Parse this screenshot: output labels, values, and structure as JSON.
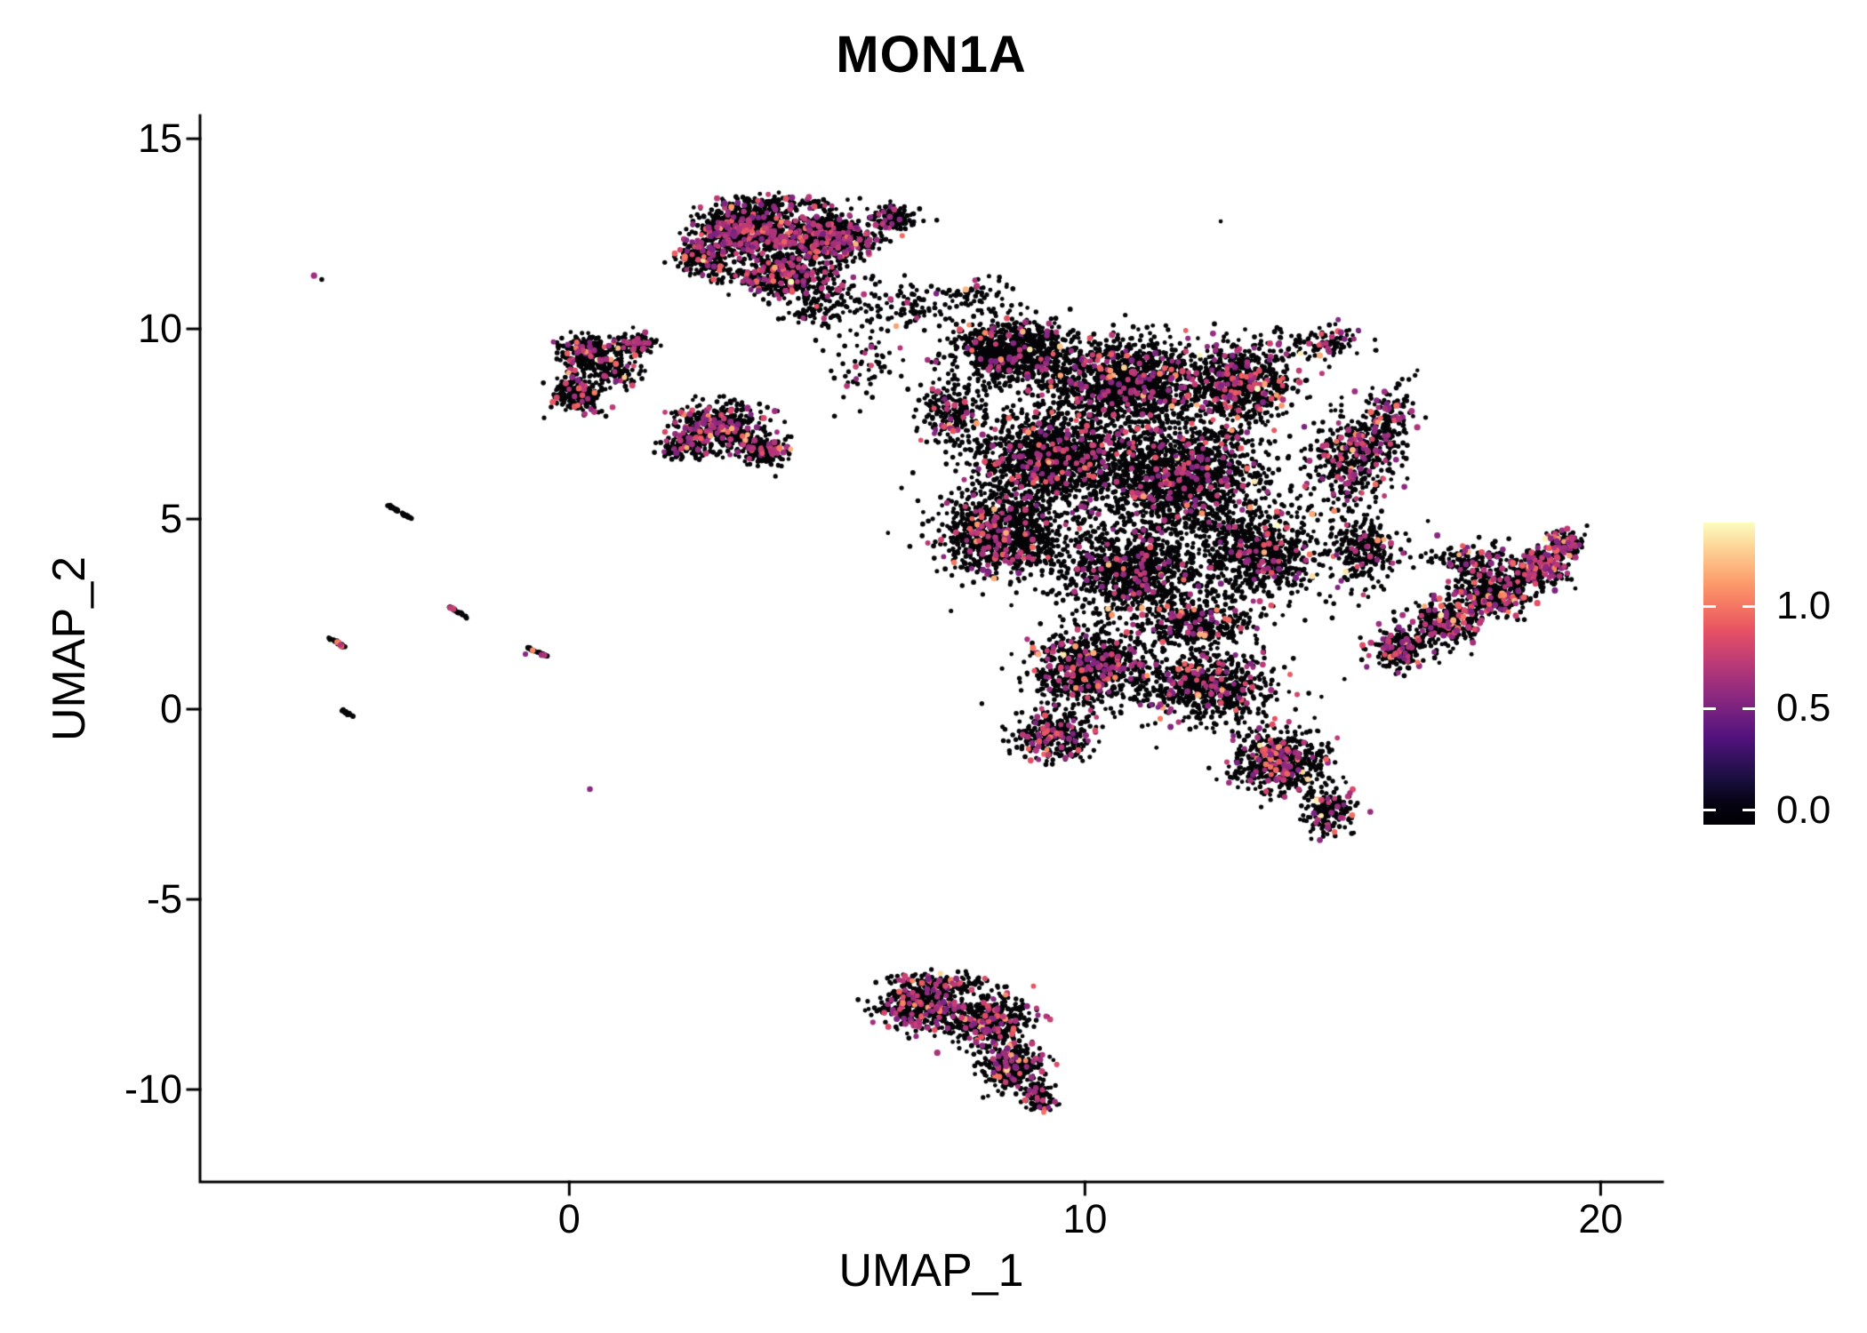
{
  "chart_data": {
    "type": "scatter",
    "title": "MON1A",
    "xlabel": "UMAP_1",
    "ylabel": "UMAP_2",
    "xlim": [
      -7.16,
      21.2
    ],
    "ylim": [
      -12.43,
      15.61
    ],
    "grid": false,
    "background": "#ffffff",
    "axis_color": "#000000",
    "x_ticks": [
      {
        "label": "0",
        "value": 0
      },
      {
        "label": "10",
        "value": 10
      },
      {
        "label": "20",
        "value": 20
      }
    ],
    "y_ticks": [
      {
        "label": "15",
        "value": 15
      },
      {
        "label": "10",
        "value": 10
      },
      {
        "label": "5",
        "value": 5
      },
      {
        "label": "0",
        "value": 0
      },
      {
        "label": "-5",
        "value": -5
      },
      {
        "label": "-10",
        "value": -10
      }
    ],
    "colormap_name": "magma",
    "colormap_stops": [
      [
        0,
        "#000004"
      ],
      [
        0.125,
        "#1D1147"
      ],
      [
        0.25,
        "#51127C"
      ],
      [
        0.375,
        "#822681"
      ],
      [
        0.5,
        "#B73779"
      ],
      [
        0.625,
        "#E75263"
      ],
      [
        0.75,
        "#FB8861"
      ],
      [
        0.875,
        "#FEC387"
      ],
      [
        1,
        "#FCFDBF"
      ]
    ],
    "colorbar": {
      "position": "right",
      "domain": [
        -0.07,
        1.41
      ],
      "ticks": [
        {
          "label": "1.0",
          "value": 1.0
        },
        {
          "label": "0.5",
          "value": 0.5
        },
        {
          "label": "0.0",
          "value": 0.0
        }
      ]
    },
    "point_color_zero": "#050508",
    "clusters": [
      {
        "name": "top-cluster",
        "expr": 0.18,
        "blobs": [
          {
            "cx": 3.4,
            "cy": 12.6,
            "rx": 0.9,
            "ry": 0.55,
            "n": 800
          },
          {
            "cx": 5.0,
            "cy": 12.4,
            "rx": 0.9,
            "ry": 0.6,
            "n": 650
          },
          {
            "cx": 4.2,
            "cy": 11.4,
            "rx": 1.1,
            "ry": 0.55,
            "n": 450
          },
          {
            "cx": 2.6,
            "cy": 11.9,
            "rx": 0.5,
            "ry": 0.5,
            "n": 200
          },
          {
            "cx": 6.3,
            "cy": 12.9,
            "rx": 0.5,
            "ry": 0.35,
            "n": 130
          },
          {
            "cx": 5.0,
            "cy": 10.6,
            "rx": 0.9,
            "ry": 0.6,
            "n": 140,
            "expr": 0.08
          },
          {
            "cx": 4.1,
            "cy": 13.3,
            "rx": 1.3,
            "ry": 0.25,
            "n": 120
          }
        ]
      },
      {
        "name": "left-upper-cluster",
        "expr": 0.1,
        "blobs": [
          {
            "cx": 0.35,
            "cy": 9.4,
            "rx": 0.55,
            "ry": 0.45,
            "n": 280
          },
          {
            "cx": 0.15,
            "cy": 8.3,
            "rx": 0.45,
            "ry": 0.5,
            "n": 220
          },
          {
            "cx": 1.3,
            "cy": 9.6,
            "rx": 0.4,
            "ry": 0.28,
            "n": 90
          },
          {
            "cx": 0.9,
            "cy": 8.9,
            "rx": 0.5,
            "ry": 0.45,
            "n": 120
          }
        ]
      },
      {
        "name": "left-mid-cluster",
        "expr": 0.18,
        "blobs": [
          {
            "cx": 2.9,
            "cy": 7.4,
            "rx": 0.85,
            "ry": 0.6,
            "n": 480
          },
          {
            "cx": 3.8,
            "cy": 6.8,
            "rx": 0.5,
            "ry": 0.4,
            "n": 150
          },
          {
            "cx": 2.2,
            "cy": 6.9,
            "rx": 0.4,
            "ry": 0.35,
            "n": 110
          }
        ]
      },
      {
        "name": "main-cluster",
        "expr": 0.09,
        "blobs": [
          {
            "cx": 8.6,
            "cy": 9.4,
            "rx": 1.2,
            "ry": 0.9,
            "n": 850
          },
          {
            "cx": 10.8,
            "cy": 8.6,
            "rx": 1.5,
            "ry": 1.1,
            "n": 1250
          },
          {
            "cx": 13.0,
            "cy": 8.6,
            "rx": 1.0,
            "ry": 1.0,
            "n": 650,
            "expr": 0.16
          },
          {
            "cx": 9.4,
            "cy": 6.6,
            "rx": 1.5,
            "ry": 1.2,
            "n": 1250
          },
          {
            "cx": 11.9,
            "cy": 6.1,
            "rx": 1.5,
            "ry": 1.4,
            "n": 1300
          },
          {
            "cx": 8.4,
            "cy": 4.6,
            "rx": 1.2,
            "ry": 1.1,
            "n": 950
          },
          {
            "cx": 10.9,
            "cy": 3.6,
            "rx": 1.3,
            "ry": 1.1,
            "n": 850
          },
          {
            "cx": 13.4,
            "cy": 4.1,
            "rx": 1.1,
            "ry": 1.1,
            "n": 650
          },
          {
            "cx": 15.2,
            "cy": 6.6,
            "rx": 0.75,
            "ry": 1.2,
            "n": 420,
            "expr": 0.18
          },
          {
            "cx": 15.9,
            "cy": 7.6,
            "rx": 0.45,
            "ry": 0.9,
            "n": 140,
            "expr": 0.2
          },
          {
            "cx": 15.4,
            "cy": 4.2,
            "rx": 0.7,
            "ry": 0.9,
            "n": 280
          },
          {
            "cx": 10.1,
            "cy": 1.1,
            "rx": 1.1,
            "ry": 1.0,
            "n": 750,
            "expr": 0.12
          },
          {
            "cx": 12.4,
            "cy": 0.6,
            "rx": 1.3,
            "ry": 0.9,
            "n": 650
          },
          {
            "cx": 13.8,
            "cy": -1.4,
            "rx": 0.9,
            "ry": 0.8,
            "n": 550,
            "expr": 0.14
          },
          {
            "cx": 14.7,
            "cy": -2.7,
            "rx": 0.5,
            "ry": 0.55,
            "n": 180
          },
          {
            "cx": 9.4,
            "cy": -0.7,
            "rx": 0.75,
            "ry": 0.65,
            "n": 300,
            "expr": 0.16
          },
          {
            "cx": 11.5,
            "cy": 5.2,
            "rx": 3.2,
            "ry": 3.6,
            "n": 650,
            "expr": 0.06
          },
          {
            "cx": 7.4,
            "cy": 7.8,
            "rx": 0.6,
            "ry": 0.8,
            "n": 200
          },
          {
            "cx": 12.2,
            "cy": 2.2,
            "rx": 1.2,
            "ry": 0.7,
            "n": 350
          }
        ]
      },
      {
        "name": "right-wing-cluster",
        "expr": 0.22,
        "blobs": [
          {
            "cx": 16.1,
            "cy": 1.6,
            "rx": 0.55,
            "ry": 0.5,
            "n": 230
          },
          {
            "cx": 17.0,
            "cy": 2.3,
            "rx": 0.65,
            "ry": 0.55,
            "n": 320
          },
          {
            "cx": 17.9,
            "cy": 3.0,
            "rx": 0.7,
            "ry": 0.55,
            "n": 330
          },
          {
            "cx": 18.8,
            "cy": 3.7,
            "rx": 0.55,
            "ry": 0.5,
            "n": 260
          },
          {
            "cx": 19.3,
            "cy": 4.3,
            "rx": 0.35,
            "ry": 0.4,
            "n": 120
          },
          {
            "cx": 17.5,
            "cy": 3.9,
            "rx": 0.8,
            "ry": 0.5,
            "n": 150
          }
        ]
      },
      {
        "name": "bottom-cluster",
        "expr": 0.15,
        "blobs": [
          {
            "cx": 6.8,
            "cy": -7.8,
            "rx": 0.75,
            "ry": 0.6,
            "n": 420
          },
          {
            "cx": 8.1,
            "cy": -8.2,
            "rx": 0.85,
            "ry": 0.65,
            "n": 480
          },
          {
            "cx": 8.6,
            "cy": -9.4,
            "rx": 0.6,
            "ry": 0.55,
            "n": 300
          },
          {
            "cx": 9.1,
            "cy": -10.2,
            "rx": 0.35,
            "ry": 0.35,
            "n": 100
          },
          {
            "cx": 7.3,
            "cy": -7.2,
            "rx": 0.9,
            "ry": 0.3,
            "n": 120
          }
        ]
      },
      {
        "name": "bridge-scatter",
        "expr": 0.08,
        "blobs": [
          {
            "cx": 6.7,
            "cy": 10.6,
            "rx": 0.9,
            "ry": 0.7,
            "n": 90
          },
          {
            "cx": 7.9,
            "cy": 10.9,
            "rx": 0.5,
            "ry": 0.4,
            "n": 50
          },
          {
            "cx": 5.8,
            "cy": 9.0,
            "rx": 0.7,
            "ry": 0.9,
            "n": 60
          },
          {
            "cx": 14.6,
            "cy": 9.6,
            "rx": 0.9,
            "ry": 0.5,
            "n": 120,
            "expr": 0.15
          }
        ]
      }
    ],
    "streaks": [
      {
        "cx": -3.3,
        "cy": 5.2,
        "len": 0.55,
        "angle": -38,
        "n": 45,
        "expr": 0.0
      },
      {
        "cx": -2.15,
        "cy": 2.55,
        "len": 0.45,
        "angle": -38,
        "n": 35,
        "expr": 0.05
      },
      {
        "cx": -4.5,
        "cy": 1.75,
        "len": 0.4,
        "angle": -38,
        "n": 30,
        "expr": 0.08
      },
      {
        "cx": -0.6,
        "cy": 1.5,
        "len": 0.45,
        "angle": -32,
        "n": 35,
        "expr": 0.08
      },
      {
        "cx": -4.3,
        "cy": -0.1,
        "len": 0.3,
        "angle": -38,
        "n": 18,
        "expr": 0.0
      }
    ],
    "singles": [
      {
        "x": -4.95,
        "y": 11.4,
        "v": 0.62
      },
      {
        "x": -4.8,
        "y": 11.3,
        "v": 0
      },
      {
        "x": -0.85,
        "y": 1.45,
        "v": 0.55
      },
      {
        "x": 0.4,
        "y": -2.1,
        "v": 0.55
      },
      {
        "x": 9.2,
        "y": -10.6,
        "v": 0.98
      }
    ]
  }
}
